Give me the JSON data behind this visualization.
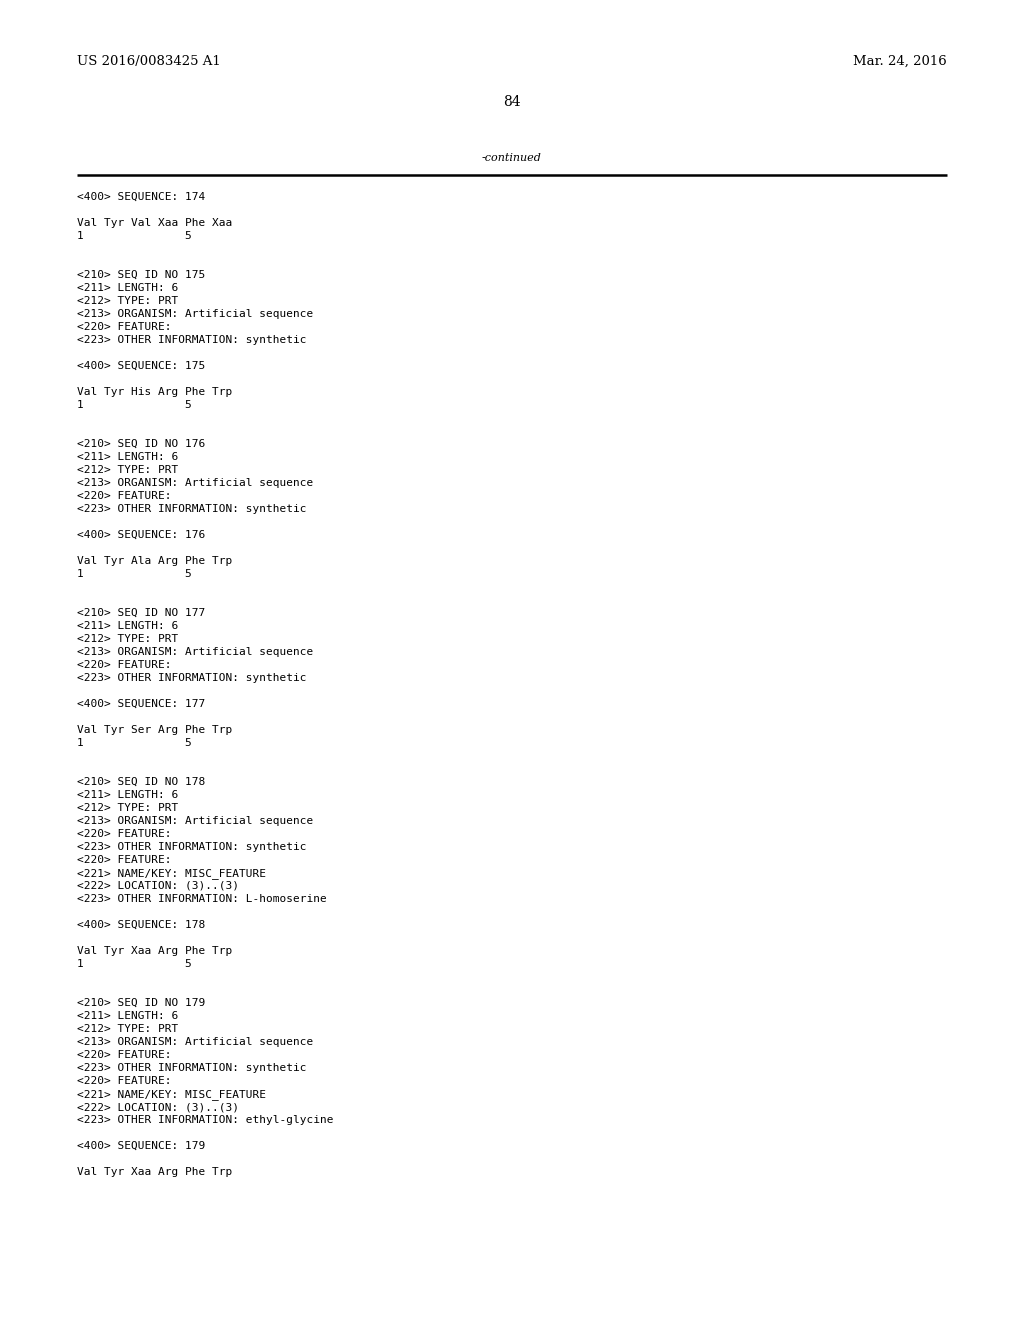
{
  "background_color": "#ffffff",
  "header_left": "US 2016/0083425 A1",
  "header_right": "Mar. 24, 2016",
  "page_number": "84",
  "continued_text": "-continued",
  "font_size_header": 9.5,
  "font_size_body": 8.0,
  "font_size_page": 10.0,
  "text_color": "#000000",
  "line_color": "#000000",
  "content_lines": [
    "<400> SEQUENCE: 174",
    "",
    "Val Tyr Val Xaa Phe Xaa",
    "1               5",
    "",
    "",
    "<210> SEQ ID NO 175",
    "<211> LENGTH: 6",
    "<212> TYPE: PRT",
    "<213> ORGANISM: Artificial sequence",
    "<220> FEATURE:",
    "<223> OTHER INFORMATION: synthetic",
    "",
    "<400> SEQUENCE: 175",
    "",
    "Val Tyr His Arg Phe Trp",
    "1               5",
    "",
    "",
    "<210> SEQ ID NO 176",
    "<211> LENGTH: 6",
    "<212> TYPE: PRT",
    "<213> ORGANISM: Artificial sequence",
    "<220> FEATURE:",
    "<223> OTHER INFORMATION: synthetic",
    "",
    "<400> SEQUENCE: 176",
    "",
    "Val Tyr Ala Arg Phe Trp",
    "1               5",
    "",
    "",
    "<210> SEQ ID NO 177",
    "<211> LENGTH: 6",
    "<212> TYPE: PRT",
    "<213> ORGANISM: Artificial sequence",
    "<220> FEATURE:",
    "<223> OTHER INFORMATION: synthetic",
    "",
    "<400> SEQUENCE: 177",
    "",
    "Val Tyr Ser Arg Phe Trp",
    "1               5",
    "",
    "",
    "<210> SEQ ID NO 178",
    "<211> LENGTH: 6",
    "<212> TYPE: PRT",
    "<213> ORGANISM: Artificial sequence",
    "<220> FEATURE:",
    "<223> OTHER INFORMATION: synthetic",
    "<220> FEATURE:",
    "<221> NAME/KEY: MISC_FEATURE",
    "<222> LOCATION: (3)..(3)",
    "<223> OTHER INFORMATION: L-homoserine",
    "",
    "<400> SEQUENCE: 178",
    "",
    "Val Tyr Xaa Arg Phe Trp",
    "1               5",
    "",
    "",
    "<210> SEQ ID NO 179",
    "<211> LENGTH: 6",
    "<212> TYPE: PRT",
    "<213> ORGANISM: Artificial sequence",
    "<220> FEATURE:",
    "<223> OTHER INFORMATION: synthetic",
    "<220> FEATURE:",
    "<221> NAME/KEY: MISC_FEATURE",
    "<222> LOCATION: (3)..(3)",
    "<223> OTHER INFORMATION: ethyl-glycine",
    "",
    "<400> SEQUENCE: 179",
    "",
    "Val Tyr Xaa Arg Phe Trp"
  ]
}
